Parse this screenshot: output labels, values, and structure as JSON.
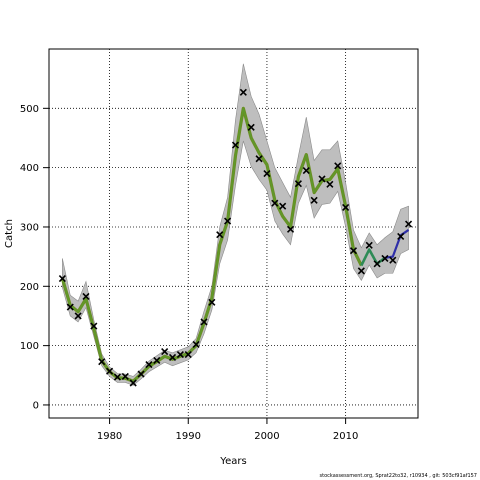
{
  "chart_data": {
    "type": "line",
    "xlabel": "Years",
    "ylabel": "Catch",
    "xlim": [
      1972.3,
      2019.2
    ],
    "ylim": [
      -22,
      600
    ],
    "x_ticks": [
      1980,
      1990,
      2000,
      2010
    ],
    "y_ticks": [
      0,
      100,
      200,
      300,
      400,
      500
    ],
    "grid": true,
    "colors": {
      "band": "#bebebe",
      "band_edge": "#8a8a8a",
      "line_main": "#6b8e23",
      "line_highlight": "#5a9e2f",
      "line_recent_teal": "#2e8b57",
      "line_recent_blue": "#2f2fa8",
      "observed_marker": "#000000"
    },
    "observed": {
      "x": [
        1974,
        1975,
        1976,
        1977,
        1978,
        1979,
        1980,
        1981,
        1982,
        1983,
        1984,
        1985,
        1986,
        1987,
        1988,
        1989,
        1990,
        1991,
        1992,
        1993,
        1994,
        1995,
        1996,
        1997,
        1998,
        1999,
        2000,
        2001,
        2002,
        2003,
        2004,
        2005,
        2006,
        2007,
        2008,
        2009,
        2010,
        2011,
        2012,
        2013,
        2014,
        2015,
        2016,
        2017,
        2018
      ],
      "y": [
        213,
        165,
        150,
        183,
        133,
        73,
        57,
        47,
        48,
        37,
        52,
        68,
        75,
        90,
        80,
        85,
        85,
        102,
        140,
        173,
        287,
        310,
        438,
        527,
        468,
        415,
        390,
        340,
        335,
        296,
        373,
        395,
        345,
        381,
        372,
        403,
        333,
        260,
        226,
        269,
        238,
        247,
        244,
        284,
        305
      ]
    },
    "estimated": {
      "x": [
        1974,
        1975,
        1976,
        1977,
        1978,
        1979,
        1980,
        1981,
        1982,
        1983,
        1984,
        1985,
        1986,
        1987,
        1988,
        1989,
        1990,
        1991,
        1992,
        1993,
        1994,
        1995,
        1996,
        1997,
        1998,
        1999,
        2000,
        2001,
        2002,
        2003,
        2004,
        2005,
        2006,
        2007,
        2008,
        2009,
        2010,
        2011,
        2012,
        2013,
        2014,
        2015,
        2016,
        2017,
        2018
      ],
      "y": [
        213,
        168,
        157,
        179,
        128,
        75,
        56,
        46,
        45,
        40,
        52,
        65,
        73,
        82,
        77,
        82,
        87,
        100,
        138,
        180,
        270,
        310,
        420,
        500,
        450,
        425,
        405,
        345,
        318,
        300,
        385,
        422,
        358,
        378,
        380,
        398,
        335,
        262,
        235,
        262,
        238,
        248,
        250,
        286,
        295
      ],
      "lower": [
        198,
        150,
        140,
        164,
        115,
        66,
        48,
        38,
        38,
        33,
        44,
        56,
        64,
        72,
        66,
        71,
        76,
        88,
        120,
        160,
        238,
        278,
        370,
        445,
        402,
        380,
        362,
        310,
        288,
        270,
        340,
        370,
        315,
        338,
        340,
        360,
        300,
        230,
        210,
        236,
        214,
        222,
        222,
        255,
        262
      ],
      "upper": [
        247,
        185,
        175,
        208,
        143,
        86,
        64,
        53,
        52,
        48,
        60,
        74,
        83,
        92,
        88,
        93,
        98,
        112,
        158,
        200,
        300,
        350,
        480,
        575,
        520,
        490,
        445,
        400,
        375,
        350,
        420,
        485,
        412,
        430,
        430,
        445,
        375,
        295,
        265,
        290,
        270,
        282,
        292,
        330,
        335
      ]
    }
  },
  "footer": {
    "source_note": "stockassessment.org,  Sprat22to32,  r10934 ,  git:  503cf91af157"
  }
}
